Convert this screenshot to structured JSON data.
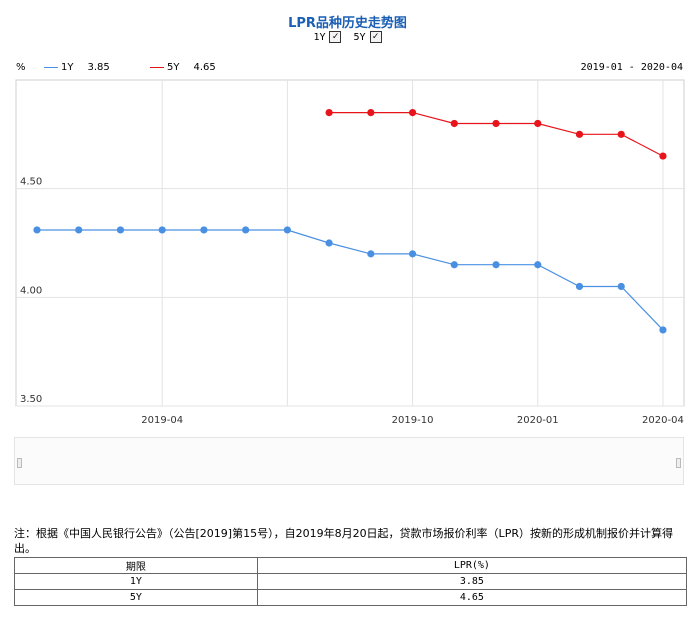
{
  "title": "LPR品种历史走势图",
  "toggles": [
    {
      "label": "1Y",
      "checked": true,
      "mark": "✓"
    },
    {
      "label": "5Y",
      "checked": true,
      "mark": "✓"
    }
  ],
  "legend": {
    "unit": "%",
    "items": [
      {
        "name": "1Y",
        "value": "3.85",
        "color": "#4a90e2"
      },
      {
        "name": "5Y",
        "value": "4.65",
        "color": "#e8141c"
      }
    ]
  },
  "date_range": "2019-01 - 2020-04",
  "chart_data": {
    "type": "line",
    "y_ticks": [
      "4.50",
      "4.00",
      "3.50"
    ],
    "ylim": [
      3.5,
      5.0
    ],
    "x_ticks": [
      "2019-04",
      "2019-10",
      "2020-01",
      "2020-04"
    ],
    "grid": true,
    "series": [
      {
        "name": "1Y",
        "color": "#4a90e2",
        "x": [
          "2019-01",
          "2019-02",
          "2019-03",
          "2019-04",
          "2019-05",
          "2019-06",
          "2019-07",
          "2019-08",
          "2019-09",
          "2019-10",
          "2019-11",
          "2019-12",
          "2020-01",
          "2020-02",
          "2020-03",
          "2020-04"
        ],
        "values": [
          4.31,
          4.31,
          4.31,
          4.31,
          4.31,
          4.31,
          4.31,
          4.25,
          4.2,
          4.2,
          4.15,
          4.15,
          4.15,
          4.05,
          4.05,
          3.85
        ]
      },
      {
        "name": "5Y",
        "color": "#e8141c",
        "x": [
          "2019-08",
          "2019-09",
          "2019-10",
          "2019-11",
          "2019-12",
          "2020-01",
          "2020-02",
          "2020-03",
          "2020-04"
        ],
        "values": [
          4.85,
          4.85,
          4.85,
          4.8,
          4.8,
          4.8,
          4.75,
          4.75,
          4.65
        ]
      }
    ]
  },
  "note": "注：根据《中国人民银行公告》（公告[2019]第15号），自2019年8月20日起，贷款市场报价利率（LPR）按新的形成机制报价并计算得出。",
  "table": {
    "headers": [
      "期限",
      "LPR(%)"
    ],
    "rows": [
      [
        "1Y",
        "3.85"
      ],
      [
        "5Y",
        "4.65"
      ]
    ]
  }
}
